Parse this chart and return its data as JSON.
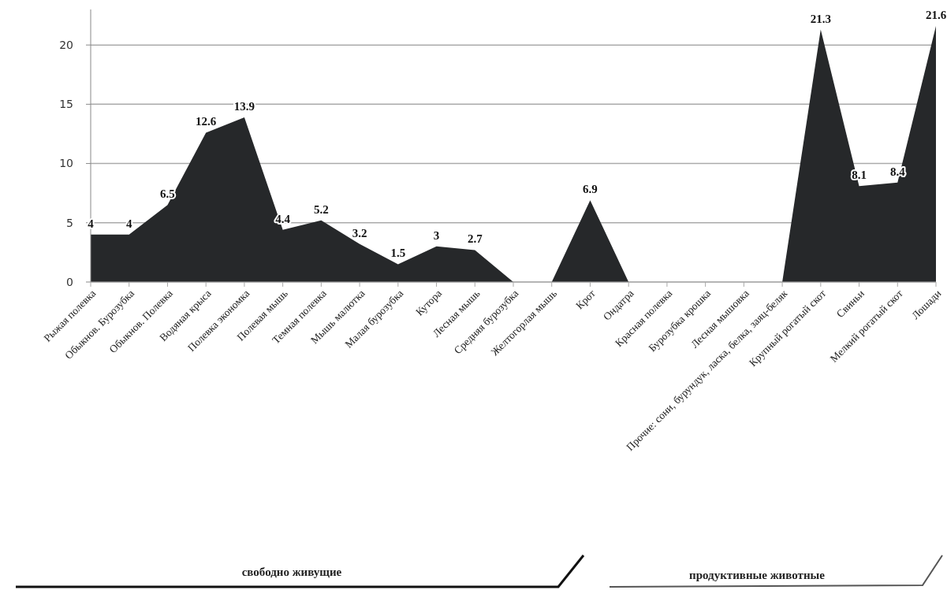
{
  "chart_data": {
    "type": "area",
    "categories": [
      "Рыжая полевка",
      "Обыкнов. Бурозубка",
      "Обыкнов. Полевка",
      "Водяная крыса",
      "Полевка экономка",
      "Полевая мышь",
      "Темная полевка",
      "Мышь малютка",
      "Малая бурозубка",
      "Кутора",
      "Лесная мышь",
      "Средняя бурозубка",
      "Желтогорлая мышь",
      "Крот",
      "Ондатра",
      "Красная полевка",
      "Бурозубка крошка",
      "Лесная мышовка",
      "Прочие: сони, бурундук, ласка, белка, заяц-беляк",
      "Крупный рогатый скот",
      "Свиньи",
      "Мелкий рогатый скот",
      "Лошади"
    ],
    "series": [
      {
        "color": "#26282a",
        "values": [
          4,
          4,
          6.5,
          12.6,
          13.9,
          4.4,
          5.2,
          3.2,
          1.5,
          3,
          2.7,
          0,
          0,
          6.9,
          0,
          0,
          0,
          0,
          0,
          21.3,
          8.1,
          8.4,
          21.6
        ],
        "value_labels": [
          "4",
          "4",
          "6.5",
          "12.6",
          "13.9",
          "4.4",
          "5.2",
          "3.2",
          "1.5",
          "3",
          "2.7",
          null,
          null,
          "6.9",
          null,
          null,
          null,
          null,
          null,
          "21.3",
          "8.1",
          "8.4",
          "21.6"
        ]
      }
    ],
    "ylim": [
      0,
      23
    ],
    "yticks": [
      0,
      5,
      10,
      15,
      20
    ],
    "grid": "y",
    "annotations": [
      "свободно живущие",
      "продуктивные животные"
    ]
  }
}
